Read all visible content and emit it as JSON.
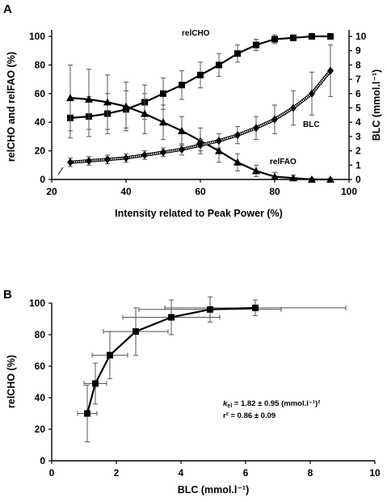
{
  "chart_data": [
    {
      "panel": "A",
      "type": "line",
      "xlabel": "Intensity related to Peak Power (%)",
      "ylabel_left": "relCHO and relFAO (%)",
      "ylabel_right": "BLC (mmol.l⁻¹)",
      "xlim": [
        20,
        100
      ],
      "xticks": [
        20,
        40,
        60,
        80,
        100
      ],
      "ylim_left": [
        0,
        100
      ],
      "yticks_left": [
        0,
        20,
        40,
        60,
        80,
        100
      ],
      "ylim_right": [
        0,
        10
      ],
      "yticks_right": [
        0,
        1,
        2,
        3,
        4,
        5,
        6,
        7,
        8,
        9,
        10
      ],
      "grid": false,
      "series": [
        {
          "name": "relCHO",
          "axis": "left",
          "marker": "square",
          "x": [
            25,
            30,
            35,
            40,
            45,
            50,
            55,
            60,
            65,
            70,
            75,
            80,
            85,
            90,
            95
          ],
          "y": [
            43,
            44,
            46,
            49,
            54,
            60,
            66,
            73,
            80,
            88,
            94,
            98,
            99,
            100,
            100
          ],
          "err": [
            14,
            14,
            14,
            13,
            12,
            11,
            10,
            9,
            8,
            6,
            4,
            3,
            2,
            1,
            1
          ]
        },
        {
          "name": "relFAO",
          "axis": "left",
          "marker": "triangle",
          "x": [
            25,
            30,
            35,
            40,
            45,
            50,
            55,
            60,
            65,
            70,
            75,
            80,
            85,
            90,
            95
          ],
          "y": [
            57,
            56,
            54,
            51,
            46,
            40,
            34,
            27,
            20,
            12,
            6,
            2,
            1,
            0,
            0
          ],
          "err": [
            23,
            21,
            19,
            17,
            14,
            12,
            10,
            9,
            8,
            6,
            4,
            3,
            2,
            1,
            1
          ]
        },
        {
          "name": "BLC",
          "axis": "right",
          "marker": "diamond",
          "x": [
            25,
            30,
            35,
            40,
            45,
            50,
            55,
            60,
            65,
            70,
            75,
            80,
            85,
            90,
            95
          ],
          "y": [
            1.2,
            1.3,
            1.4,
            1.5,
            1.7,
            1.9,
            2.1,
            2.4,
            2.7,
            3.1,
            3.6,
            4.2,
            5.0,
            6.0,
            7.6
          ],
          "err": [
            0.3,
            0.3,
            0.3,
            0.3,
            0.3,
            0.3,
            0.4,
            0.4,
            0.5,
            0.6,
            0.8,
            1.0,
            1.2,
            1.5,
            1.8
          ]
        }
      ],
      "annotations": [
        {
          "text": "relCHO",
          "x": 44,
          "y": 97,
          "axis": "left"
        },
        {
          "text": "BLC",
          "x": 83,
          "y": 40,
          "axis": "left"
        },
        {
          "text": "relFAO",
          "x": 78,
          "y": 11,
          "axis": "left"
        }
      ]
    },
    {
      "panel": "B",
      "type": "scatter",
      "xlabel": "BLC (mmol.l⁻¹)",
      "ylabel": "relCHO (%)",
      "xlim": [
        0,
        10
      ],
      "xticks": [
        0,
        2,
        4,
        6,
        8,
        10
      ],
      "ylim": [
        0,
        100
      ],
      "yticks": [
        0,
        20,
        40,
        60,
        80,
        100
      ],
      "grid": false,
      "points": {
        "x": [
          1.1,
          1.35,
          1.8,
          2.6,
          3.7,
          4.9,
          6.3
        ],
        "y": [
          30,
          49,
          67,
          82,
          91,
          96,
          97
        ],
        "xerr": [
          0.3,
          0.35,
          0.55,
          1.0,
          1.5,
          2.2,
          2.8
        ],
        "yerr": [
          18,
          13,
          15,
          15,
          11,
          8,
          5
        ]
      },
      "fit_curve": {
        "type": "fitted line"
      },
      "annotation_line1": "kel = 1.82 ± 0.95 (mmol.l⁻¹)²",
      "annotation_line2": "r² = 0.86 ± 0.09"
    }
  ],
  "labels": {
    "panel_a": "A",
    "panel_b": "B",
    "a_xlabel": "Intensity related to Peak Power (%)",
    "a_ylabel_left": "relCHO and relFAO (%)",
    "a_ylabel_right": "BLC (mmol.l⁻¹)",
    "a_label_relcho": "relCHO",
    "a_label_blc": "BLC",
    "a_label_relfao": "relFAO",
    "b_xlabel": "BLC (mmol.l⁻¹)",
    "b_ylabel": "relCHO (%)",
    "b_annot_k": "k",
    "b_annot_k_sub": "el",
    "b_annot_k_rest": " = 1.82 ± 0.95 (mmol.l⁻¹)²",
    "b_annot_r2": "r² = 0.86 ± 0.09"
  }
}
